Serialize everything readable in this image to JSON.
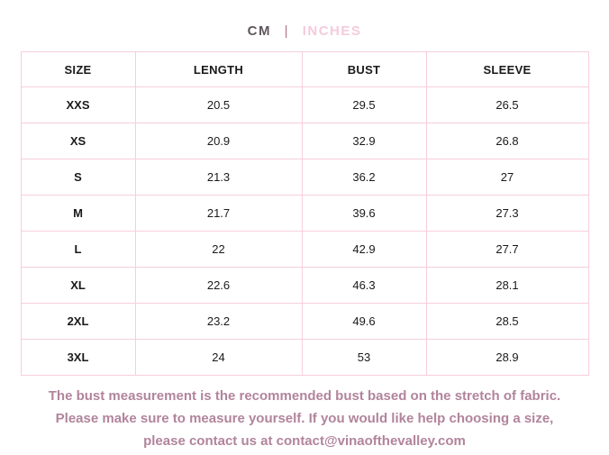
{
  "unit_toggle": {
    "cm_label": "CM",
    "separator": "|",
    "inches_label": "INCHES"
  },
  "table": {
    "headers": {
      "size": "SIZE",
      "length": "LENGTH",
      "bust": "BUST",
      "sleeve": "SLEEVE"
    },
    "rows": [
      {
        "size": "XXS",
        "length": "20.5",
        "bust": "29.5",
        "sleeve": "26.5"
      },
      {
        "size": "XS",
        "length": "20.9",
        "bust": "32.9",
        "sleeve": "26.8"
      },
      {
        "size": "S",
        "length": "21.3",
        "bust": "36.2",
        "sleeve": "27"
      },
      {
        "size": "M",
        "length": "21.7",
        "bust": "39.6",
        "sleeve": "27.3"
      },
      {
        "size": "L",
        "length": "22",
        "bust": "42.9",
        "sleeve": "27.7"
      },
      {
        "size": "XL",
        "length": "22.6",
        "bust": "46.3",
        "sleeve": "28.1"
      },
      {
        "size": "2XL",
        "length": "23.2",
        "bust": "49.6",
        "sleeve": "28.5"
      },
      {
        "size": "3XL",
        "length": "24",
        "bust": "53",
        "sleeve": "28.9"
      }
    ]
  },
  "footer": {
    "line1": "The bust measurement is the recommended bust based on the stretch of fabric.",
    "line2": "Please make sure to measure yourself. If you would like help choosing a size,",
    "line3": "please contact us at contact@vinaofthevalley.com"
  },
  "colors": {
    "table_border": "#f7cedb",
    "footer_text": "#b1849b",
    "cm_text": "#5f575d",
    "inches_text": "#f5cbdd",
    "separator_text": "#b0738e",
    "cell_text": "#1a1a1a"
  }
}
